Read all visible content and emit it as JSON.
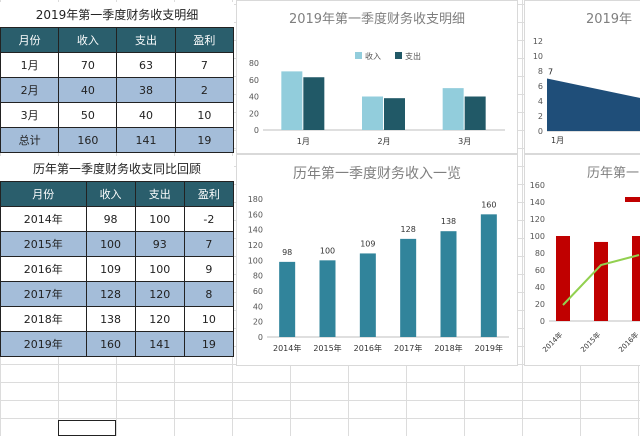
{
  "table1": {
    "title": "2019年第一季度财务收支明细",
    "headers": [
      "月份",
      "收入",
      "支出",
      "盈利"
    ],
    "rows": [
      [
        "1月",
        "70",
        "63",
        "7"
      ],
      [
        "2月",
        "40",
        "38",
        "2"
      ],
      [
        "3月",
        "50",
        "40",
        "10"
      ],
      [
        "总计",
        "160",
        "141",
        "19"
      ]
    ]
  },
  "table2": {
    "title": "历年第一季度财务收支同比回顾",
    "headers": [
      "月份",
      "收入",
      "支出",
      "盈利"
    ],
    "rows": [
      [
        "2014年",
        "98",
        "100",
        "-2"
      ],
      [
        "2015年",
        "100",
        "93",
        "7"
      ],
      [
        "2016年",
        "109",
        "100",
        "9"
      ],
      [
        "2017年",
        "128",
        "120",
        "8"
      ],
      [
        "2018年",
        "138",
        "120",
        "10"
      ],
      [
        "2019年",
        "160",
        "141",
        "19"
      ]
    ]
  },
  "chart_data": [
    {
      "type": "bar",
      "title": "2019年第一季度财务收支明细",
      "categories": [
        "1月",
        "2月",
        "3月"
      ],
      "series": [
        {
          "name": "收入",
          "values": [
            70,
            40,
            50
          ],
          "color": "#92cddc"
        },
        {
          "name": "支出",
          "values": [
            63,
            38,
            40
          ],
          "color": "#215967"
        }
      ],
      "ylim": [
        0,
        80
      ],
      "yticks": [
        "0",
        "20",
        "40",
        "60",
        "80"
      ],
      "legend": "top"
    },
    {
      "type": "bar",
      "title": "历年第一季度财务收入一览",
      "categories": [
        "2014年",
        "2015年",
        "2016年",
        "2017年",
        "2018年",
        "2019年"
      ],
      "values": [
        98,
        100,
        109,
        128,
        138,
        160
      ],
      "color": "#31849b",
      "ylim": [
        0,
        180
      ],
      "yticks": [
        "0",
        "20",
        "40",
        "60",
        "80",
        "100",
        "120",
        "140",
        "160",
        "180"
      ]
    },
    {
      "type": "area",
      "title": "2019年",
      "categories": [
        "1月"
      ],
      "values": [
        7
      ],
      "data_label": "7",
      "color": "#1f4e79",
      "ylim": [
        0,
        12
      ],
      "yticks": [
        "0",
        "2",
        "4",
        "6",
        "8",
        "10",
        "12"
      ]
    },
    {
      "type": "bar",
      "title": "历年第一",
      "categories": [
        "2014年",
        "2015年",
        "2016年"
      ],
      "series": [
        {
          "values": [
            100,
            93,
            100
          ],
          "color": "#c00000"
        },
        {
          "values": [
            -2,
            7,
            9
          ],
          "color": "#92d050"
        }
      ],
      "ylim": [
        0,
        160
      ],
      "yticks": [
        "0",
        "20",
        "40",
        "60",
        "80",
        "100",
        "120",
        "140",
        "160"
      ]
    }
  ]
}
